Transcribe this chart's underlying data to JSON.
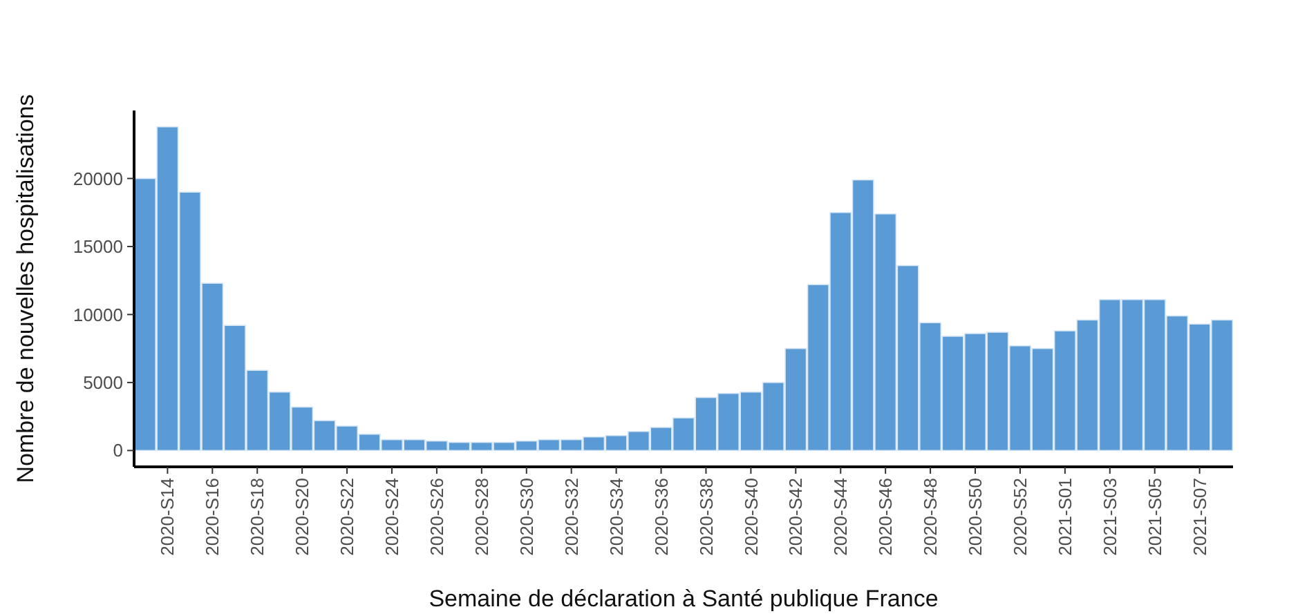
{
  "chart_data": {
    "type": "bar",
    "xlabel": "Semaine de déclaration à Santé publique France",
    "ylabel": "Nombre de nouvelles hospitalisations",
    "categories": [
      null,
      "2020-S14",
      null,
      "2020-S16",
      null,
      "2020-S18",
      null,
      "2020-S20",
      null,
      "2020-S22",
      null,
      "2020-S24",
      null,
      "2020-S26",
      null,
      "2020-S28",
      null,
      "2020-S30",
      null,
      "2020-S32",
      null,
      "2020-S34",
      null,
      "2020-S36",
      null,
      "2020-S38",
      null,
      "2020-S40",
      null,
      "2020-S42",
      null,
      "2020-S44",
      null,
      "2020-S46",
      null,
      "2020-S48",
      null,
      "2020-S50",
      null,
      "2020-S52",
      null,
      "2021-S01",
      null,
      "2021-S03",
      null,
      "2021-S05",
      null,
      "2021-S07",
      null
    ],
    "values": [
      20000,
      23800,
      19000,
      12300,
      9200,
      5900,
      4300,
      3200,
      2200,
      1800,
      1200,
      800,
      800,
      700,
      600,
      600,
      600,
      700,
      800,
      800,
      1000,
      1100,
      1400,
      1700,
      2400,
      3900,
      4200,
      4300,
      5000,
      7500,
      12200,
      17500,
      19900,
      17400,
      13600,
      9400,
      8400,
      8600,
      8700,
      7700,
      7500,
      8800,
      9600,
      11100,
      11100,
      11100,
      9900,
      9300,
      9600
    ],
    "color": "#5b9bd5",
    "ylim": [
      -1200,
      25000
    ],
    "yticks": [
      0,
      5000,
      10000,
      15000,
      20000
    ],
    "grid": false
  }
}
